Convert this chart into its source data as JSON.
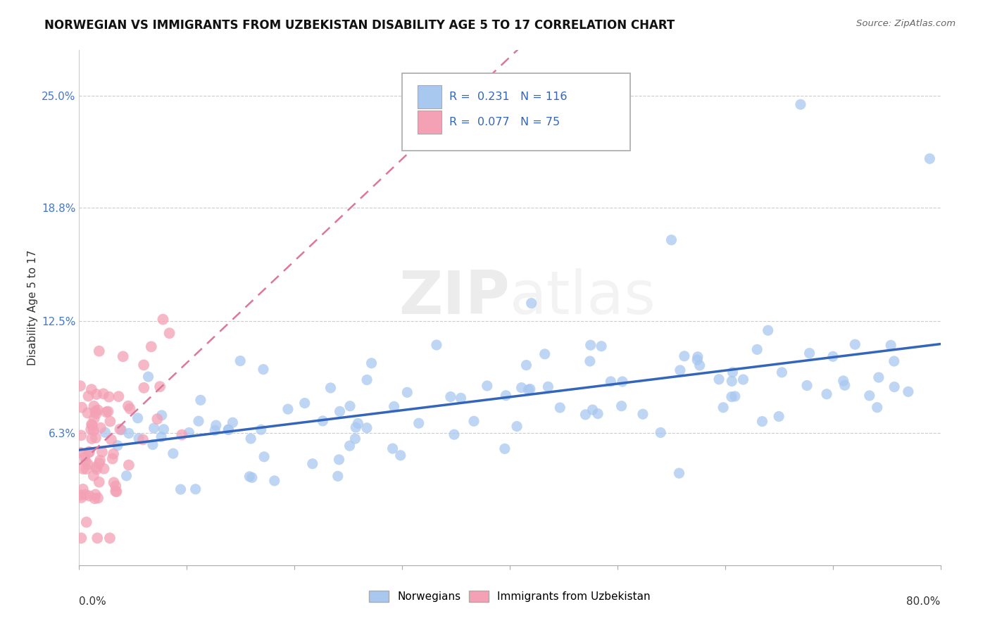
{
  "title": "NORWEGIAN VS IMMIGRANTS FROM UZBEKISTAN DISABILITY AGE 5 TO 17 CORRELATION CHART",
  "source": "Source: ZipAtlas.com",
  "ylabel": "Disability Age 5 to 17",
  "ytick_labels": [
    "6.3%",
    "12.5%",
    "18.8%",
    "25.0%"
  ],
  "ytick_values": [
    0.063,
    0.125,
    0.188,
    0.25
  ],
  "xlim": [
    0.0,
    0.8
  ],
  "ylim": [
    -0.01,
    0.275
  ],
  "norwegians_R": 0.231,
  "norwegians_N": 116,
  "uzbekistan_R": 0.077,
  "uzbekistan_N": 75,
  "norwegian_color": "#a8c8f0",
  "uzbekistan_color": "#f4a0b5",
  "norwegian_line_color": "#3366bb",
  "uzbekistan_line_color": "#dd7799",
  "background_color": "#ffffff",
  "grid_color": "#cccccc",
  "watermark_zip": "ZIP",
  "watermark_atlas": "atlas",
  "legend_label_norwegian": "Norwegians",
  "legend_label_uzbekistan": "Immigrants from Uzbekistan",
  "title_fontsize": 12,
  "axis_label_fontsize": 11,
  "tick_fontsize": 11
}
